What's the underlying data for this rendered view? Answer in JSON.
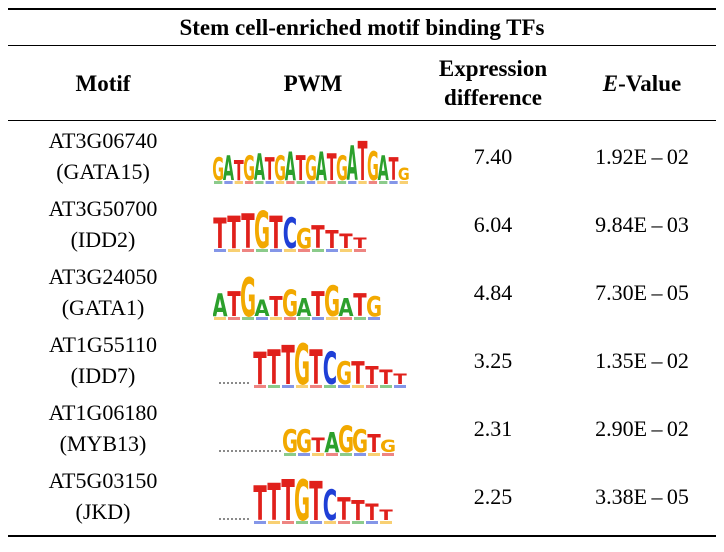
{
  "table": {
    "title": "Stem cell-enriched motif binding TFs",
    "headers": {
      "motif": "Motif",
      "pwm": "PWM",
      "expression_line1": "Expression",
      "expression_line2": "difference",
      "evalue_italic": "E",
      "evalue_rest": "-Value"
    },
    "rows": [
      {
        "gene": "AT3G06740",
        "name": "(GATA15)",
        "pwm_logo": "GATGATGATGATGATGATG",
        "expression_difference": "7.40",
        "e_value": "1.92E – 02"
      },
      {
        "gene": "AT3G50700",
        "name": "(IDD2)",
        "pwm_logo": "TTTGTCGTTTT",
        "expression_difference": "6.04",
        "e_value": "9.84E – 03"
      },
      {
        "gene": "AT3G24050",
        "name": "(GATA1)",
        "pwm_logo": "ATGATGATGATG",
        "expression_difference": "4.84",
        "e_value": "7.30E – 05"
      },
      {
        "gene": "AT1G55110",
        "name": "(IDD7)",
        "pwm_logo": "TTTGTCGTTTT",
        "expression_difference": "3.25",
        "e_value": "1.35E – 02"
      },
      {
        "gene": "AT1G06180",
        "name": "(MYB13)",
        "pwm_logo": "GGTAGGTG",
        "expression_difference": "2.31",
        "e_value": "2.90E – 02"
      },
      {
        "gene": "AT5G03150",
        "name": "(JKD)",
        "pwm_logo": "TTTGTCTTTT",
        "expression_difference": "2.25",
        "e_value": "3.38E – 05"
      }
    ]
  },
  "colors": {
    "A": "#2ca02c",
    "C": "#1f3fd6",
    "G": "#f2a900",
    "T": "#e0201b",
    "rule": "#000000"
  }
}
